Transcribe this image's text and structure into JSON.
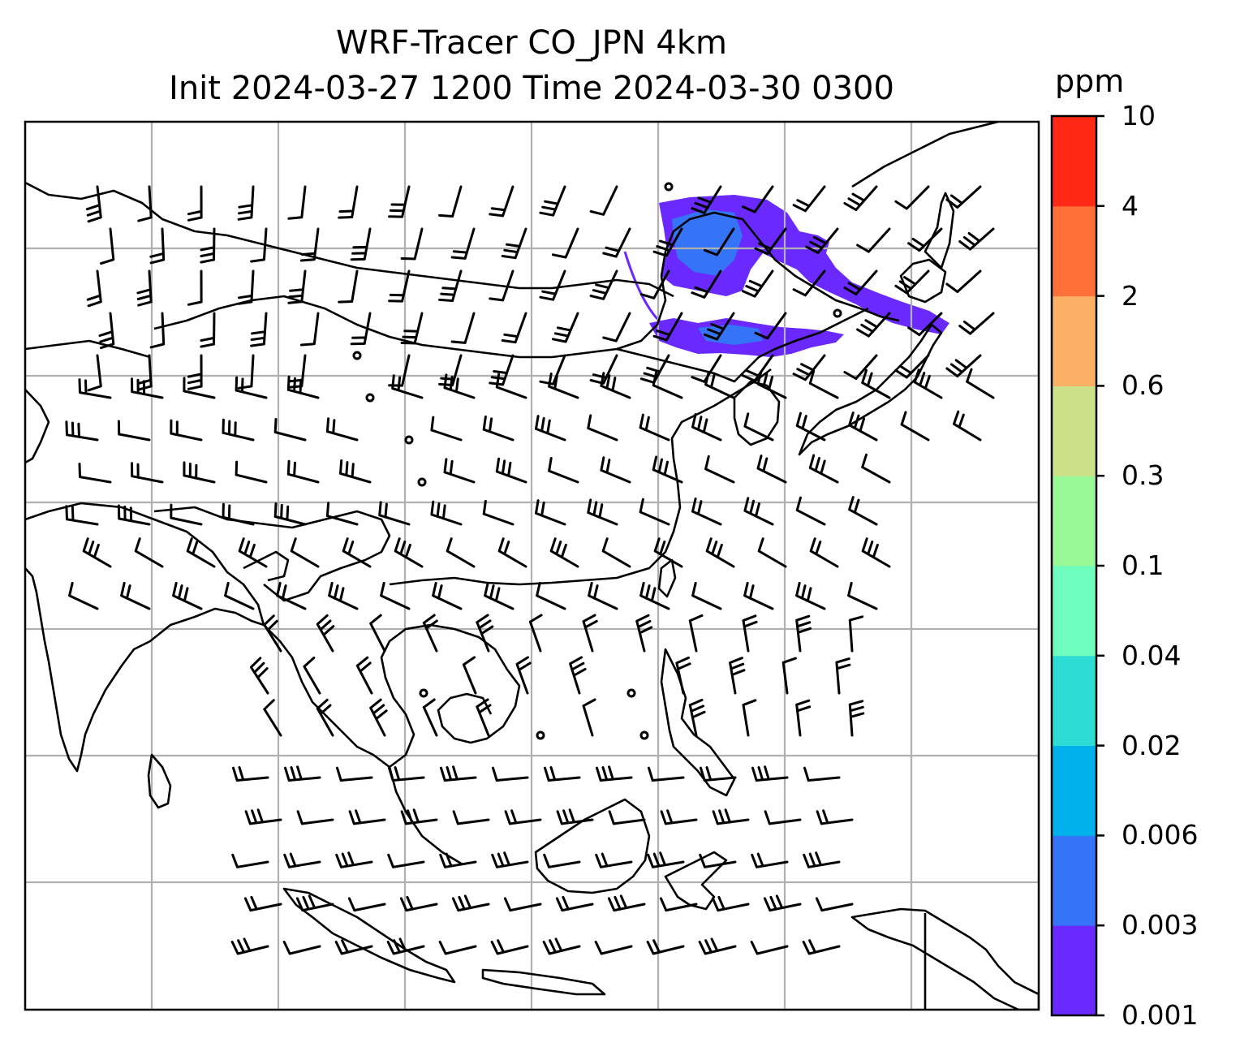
{
  "title": {
    "line1": "WRF-Tracer CO_JPN 4km",
    "line2": "Init 2024-03-27 1200 Time 2024-03-30 0300"
  },
  "colorbar": {
    "unit": "ppm",
    "levels": [
      "0.001",
      "0.003",
      "0.006",
      "0.02",
      "0.04",
      "0.1",
      "0.3",
      "0.6",
      "2",
      "4",
      "10"
    ],
    "colors": [
      "#6a29ff",
      "#3574f6",
      "#00b1ec",
      "#2ddcd4",
      "#6ffcbf",
      "#99f996",
      "#cce08a",
      "#fcb066",
      "#ff7038",
      "#ff2916"
    ]
  },
  "map": {
    "plume_colors": [
      "#6a29ff",
      "#3574f6"
    ],
    "gridline_color": "#b0b0b0",
    "coastline_color": "#000000"
  }
}
